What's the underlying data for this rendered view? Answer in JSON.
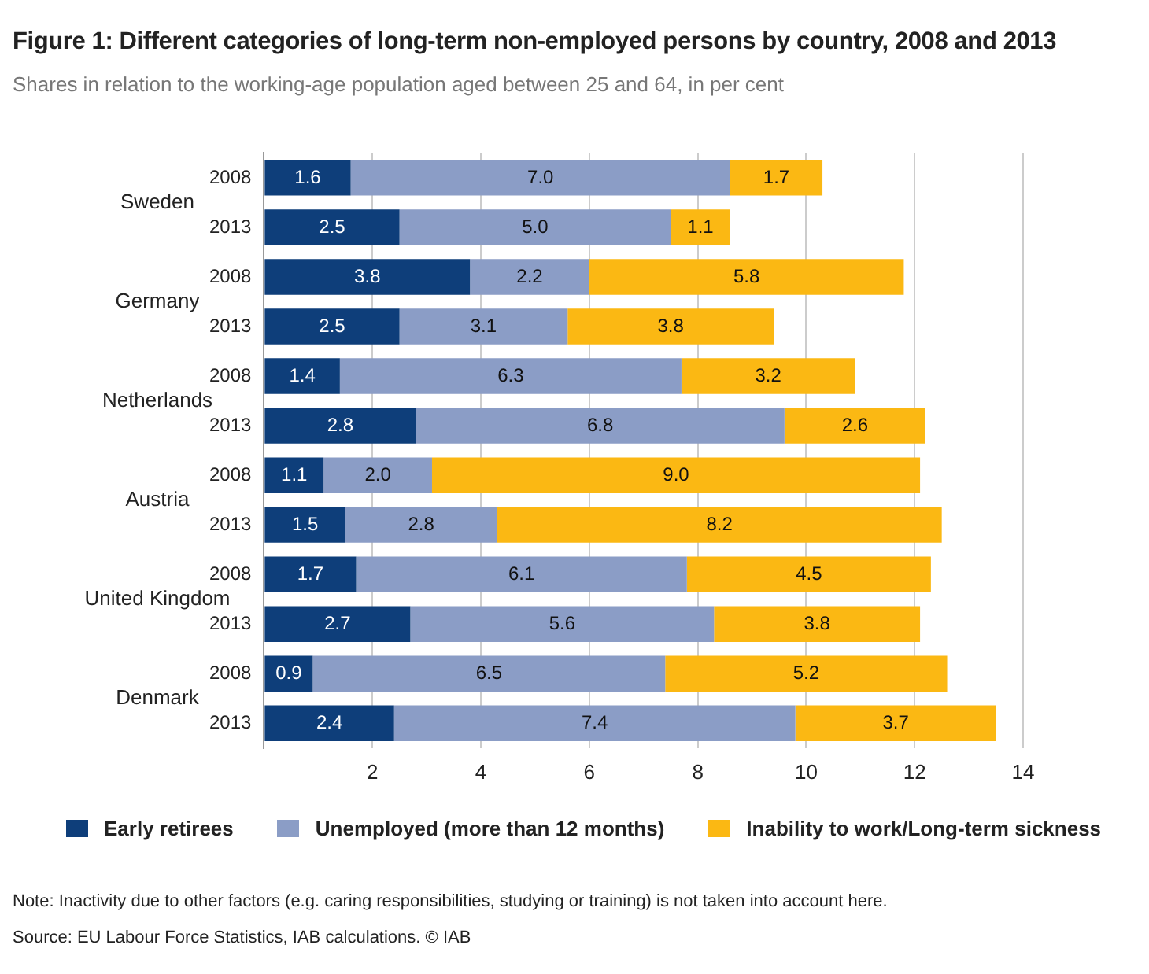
{
  "chart_data": {
    "type": "bar",
    "orientation": "horizontal",
    "stacked": true,
    "title": "Figure 1: Different categories of long-term non-employed persons by country, 2008 and 2013",
    "subtitle": "Shares in relation to the working-age population aged between 25 and 64, in per cent",
    "categories": [
      "2008",
      "2013",
      "2008",
      "2013",
      "2008",
      "2013",
      "2008",
      "2013",
      "2008",
      "2013",
      "2008",
      "2013"
    ],
    "series": [
      {
        "name": "Early retirees",
        "color": "#0e3e7a",
        "values": [
          1.6,
          2.5,
          3.8,
          2.5,
          1.4,
          2.8,
          1.1,
          1.5,
          1.7,
          2.7,
          0.9,
          2.4
        ],
        "value_labels": [
          "1.6",
          "2.5",
          "3.8",
          "2.5",
          "1.4",
          "2.8",
          "1.1",
          "1.5",
          "1.7",
          "2.7",
          "0.9",
          "2.4"
        ]
      },
      {
        "name": "Unemployed (more than 12 months)",
        "color": "#8b9dc6",
        "values": [
          7.0,
          5.0,
          2.2,
          3.1,
          6.3,
          6.8,
          2.0,
          2.8,
          6.1,
          5.6,
          6.5,
          7.4
        ],
        "value_labels": [
          "7.0",
          "5.0",
          "2.2",
          "3.1",
          "6.3",
          "6.8",
          "2.0",
          "2.8",
          "6.1",
          "5.6",
          "6.5",
          "7.4"
        ]
      },
      {
        "name": "Inability to work/Long-term sickness",
        "color": "#fbb813",
        "values": [
          1.7,
          1.1,
          5.8,
          3.8,
          3.2,
          2.6,
          9.0,
          8.2,
          4.5,
          3.8,
          5.2,
          3.7
        ],
        "value_labels": [
          "1.7",
          "1.1",
          "5.8",
          "3.8",
          "3.2",
          "2.6",
          "9.0",
          "8.2",
          "4.5",
          "3.8",
          "5.2",
          "3.7"
        ]
      }
    ],
    "xlim": [
      0,
      14
    ],
    "xticks": [
      {
        "value": 0,
        "label": null
      },
      2,
      4,
      6,
      8,
      10,
      12,
      14
    ],
    "grid": "x",
    "legend": "bottom",
    "annotations": [
      "Sweden",
      "Germany",
      "Netherlands",
      "Austria",
      "United Kingdom",
      "Denmark",
      "Note: Inactivity due to other factors (e.g. caring responsibilities, studying or training) is not taken into account here.",
      "Source: EU Labour Force Statistics, IAB calculations.  © IAB"
    ]
  }
}
